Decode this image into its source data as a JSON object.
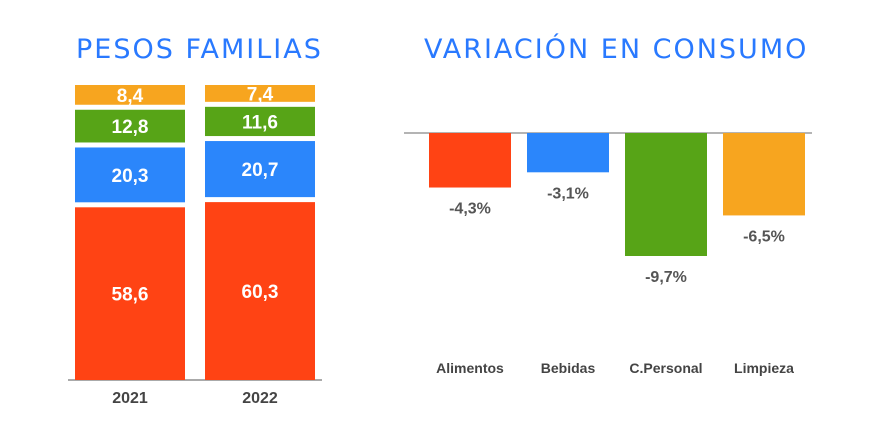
{
  "chart_data": [
    {
      "type": "bar",
      "stacked": true,
      "title": "PESOS FAMILIAS",
      "categories": [
        "2021",
        "2022"
      ],
      "series": [
        {
          "values": [
            58.6,
            60.3
          ],
          "labels": [
            "58,6",
            "60,3"
          ],
          "color": "#ff4314"
        },
        {
          "values": [
            20.3,
            20.7
          ],
          "labels": [
            "20,3",
            "20,7"
          ],
          "color": "#2b86fb"
        },
        {
          "values": [
            12.8,
            11.6
          ],
          "labels": [
            "12,8",
            "11,6"
          ],
          "color": "#57a417"
        },
        {
          "values": [
            8.4,
            7.4
          ],
          "labels": [
            "8,4",
            "7,4"
          ],
          "color": "#f7a51f"
        }
      ],
      "ylim": [
        0,
        100
      ],
      "grid": false
    },
    {
      "type": "bar",
      "title": "VARIACIÓN EN CONSUMO",
      "categories": [
        "Alimentos",
        "Bebidas",
        "C.Personal",
        "Limpieza"
      ],
      "values": [
        -4.3,
        -3.1,
        -9.7,
        -6.5
      ],
      "labels": [
        "-4,3%",
        "-3,1%",
        "-9,7%",
        "-6,5%"
      ],
      "colors": [
        "#ff4314",
        "#2b86fb",
        "#57a417",
        "#f7a51f"
      ],
      "ylim": [
        -10,
        0
      ],
      "grid": false
    }
  ]
}
